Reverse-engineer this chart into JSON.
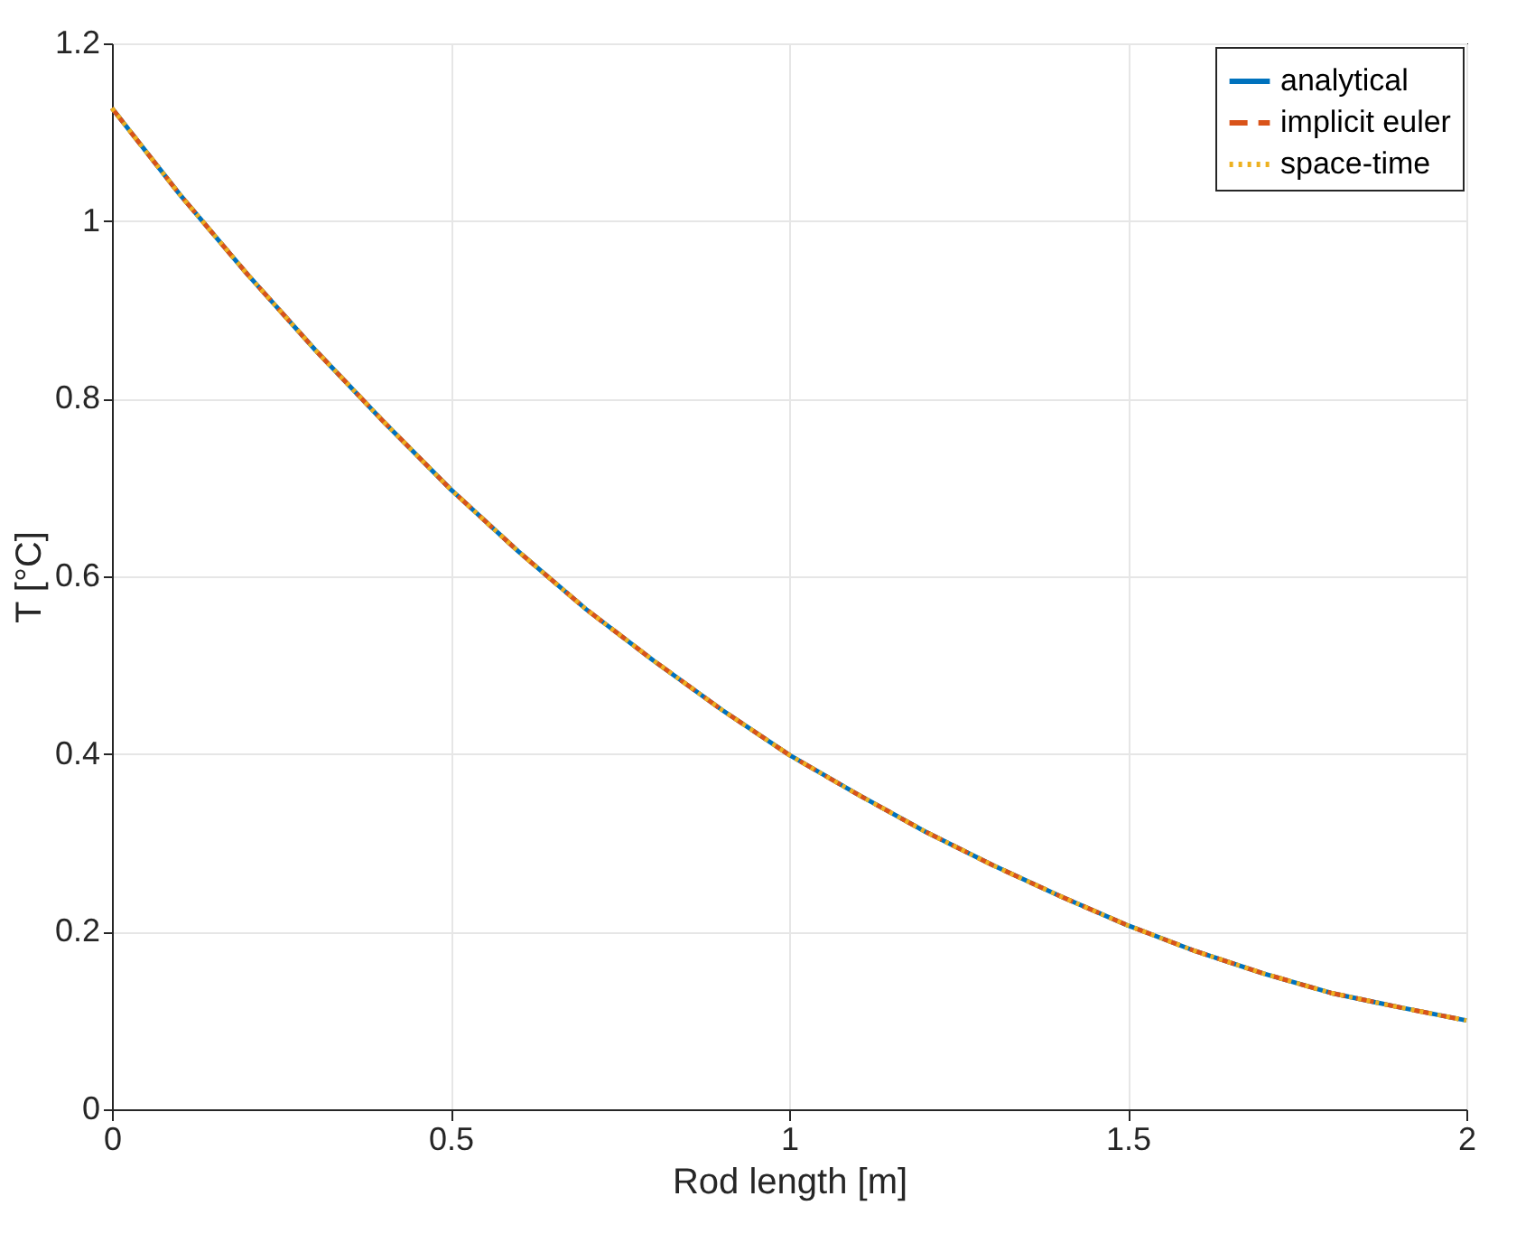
{
  "chart_data": {
    "type": "line",
    "xlabel": "Rod length [m]",
    "ylabel": "T [°C]",
    "x": [
      0,
      0.1,
      0.2,
      0.3,
      0.4,
      0.5,
      0.6,
      0.7,
      0.8,
      0.9,
      1.0,
      1.1,
      1.2,
      1.3,
      1.4,
      1.5,
      1.6,
      1.7,
      1.8,
      1.9,
      2.0
    ],
    "series": [
      {
        "name": "analytical",
        "color": "#0072bd",
        "line_style": "solid",
        "values": [
          1.127,
          1.03,
          0.94,
          0.855,
          0.775,
          0.698,
          0.628,
          0.563,
          0.505,
          0.45,
          0.399,
          0.355,
          0.313,
          0.275,
          0.24,
          0.207,
          0.178,
          0.153,
          0.131,
          0.115,
          0.1
        ]
      },
      {
        "name": "implicit euler",
        "color": "#d95319",
        "line_style": "dashed",
        "values": [
          1.127,
          1.03,
          0.94,
          0.855,
          0.775,
          0.698,
          0.628,
          0.563,
          0.505,
          0.45,
          0.399,
          0.355,
          0.313,
          0.275,
          0.24,
          0.207,
          0.178,
          0.153,
          0.131,
          0.115,
          0.1
        ]
      },
      {
        "name": "space-time",
        "color": "#edb120",
        "line_style": "dotted",
        "values": [
          1.127,
          1.03,
          0.94,
          0.855,
          0.775,
          0.698,
          0.628,
          0.563,
          0.505,
          0.45,
          0.399,
          0.355,
          0.313,
          0.275,
          0.24,
          0.207,
          0.178,
          0.153,
          0.131,
          0.115,
          0.1
        ]
      }
    ],
    "xlim": [
      0,
      2
    ],
    "xticks": [
      0,
      0.5,
      1,
      1.5,
      2
    ],
    "ylim": [
      0,
      1.2
    ],
    "yticks": [
      0,
      0.2,
      0.4,
      0.6,
      0.8,
      1,
      1.2
    ],
    "grid": true,
    "legend": "top right"
  }
}
